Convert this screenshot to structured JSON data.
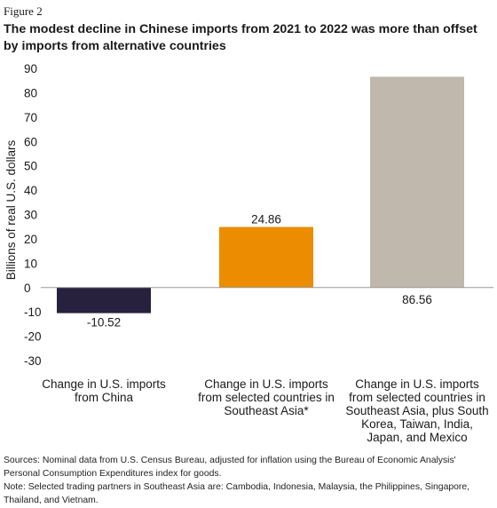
{
  "figure_label": "Figure 2",
  "title": "The modest decline in Chinese imports from 2021 to 2022 was more than offset by imports from alternative countries",
  "notes": {
    "sources": "Sources: Nominal data from U.S. Census Bureau, adjusted for inflation using the Bureau of Economic Analysis' Personal Consumption Expenditures index for goods.",
    "note": "Note: Selected trading partners in Southeast Asia are: Cambodia, Indonesia, Malaysia, the Philippines, Singapore, Thailand, and Vietnam."
  },
  "chart_data": {
    "type": "bar",
    "title": "The modest decline in Chinese imports from 2021 to 2022 was more than offset by imports from alternative countries",
    "ylabel": "Billions of real U.S. dollars",
    "xlabel": "",
    "ylim": [
      -30,
      90
    ],
    "yticks": [
      90,
      80,
      70,
      60,
      50,
      40,
      30,
      20,
      10,
      0,
      -10,
      -20,
      -30
    ],
    "grid": false,
    "categories": [
      [
        "Change in U.S. imports",
        "from China"
      ],
      [
        "Change in U.S. imports",
        "from selected countries in",
        "Southeast Asia*"
      ],
      [
        "Change in U.S. imports",
        "from selected countries in",
        "Southeast Asia, plus South",
        "Korea, Taiwan, India,",
        "Japan, and Mexico"
      ]
    ],
    "values": [
      -10.52,
      24.86,
      86.56
    ],
    "data_labels": [
      "-10.52",
      "24.86",
      "86.56"
    ],
    "colors": [
      "#27213d",
      "#ec8c00",
      "#c0b8ad"
    ]
  }
}
